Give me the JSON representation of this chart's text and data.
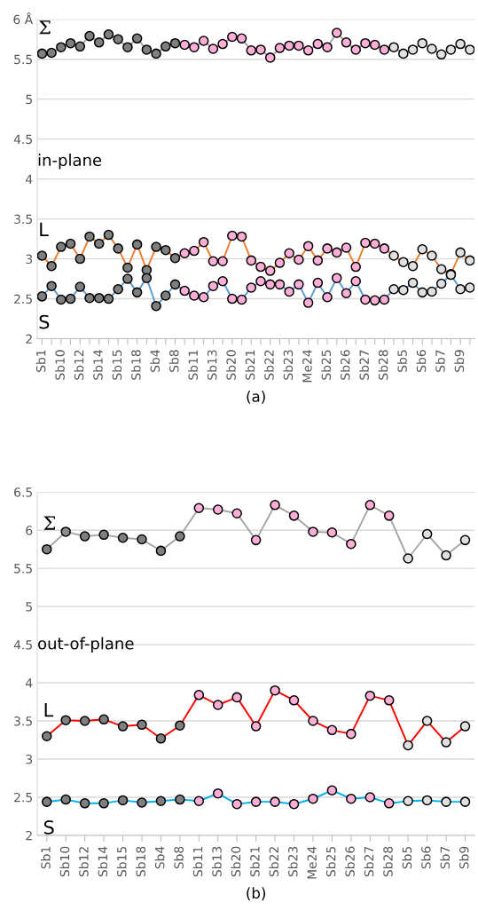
{
  "chart_data": [
    {
      "type": "line",
      "xlabel": "(a)",
      "annotations": [
        "in-plane"
      ],
      "categories": [
        "Sb1",
        null,
        "Sb10",
        null,
        "Sb12",
        null,
        "Sb14",
        null,
        "Sb15",
        null,
        "Sb18",
        null,
        "Sb4",
        null,
        "Sb8",
        null,
        "Sb11",
        null,
        "Sb13",
        null,
        "Sb20",
        null,
        "Sb21",
        null,
        "Sb22",
        null,
        "Sb23",
        null,
        "Me24",
        null,
        "Sb25",
        null,
        "Sb26",
        null,
        "Sb27",
        null,
        "Sb28",
        null,
        "Sb5",
        null,
        "Sb6",
        null,
        "Sb7",
        null,
        "Sb9",
        null
      ],
      "ylim": [
        2,
        6
      ],
      "yticks": [
        2,
        2.5,
        3,
        3.5,
        4,
        4.5,
        5,
        5.5,
        {
          "value": 6,
          "label": "6 Å"
        }
      ],
      "grid": "y",
      "marker": "circle",
      "line_style": "solid",
      "series": [
        {
          "name": "Σ",
          "color": "#a6a6a6",
          "values": [
            5.57,
            5.58,
            5.65,
            5.7,
            5.66,
            5.79,
            5.71,
            5.81,
            5.75,
            5.65,
            5.76,
            5.62,
            5.57,
            5.66,
            5.7,
            5.68,
            5.65,
            5.73,
            5.63,
            5.69,
            5.78,
            5.76,
            5.61,
            5.62,
            5.52,
            5.64,
            5.67,
            5.67,
            5.61,
            5.69,
            5.65,
            5.83,
            5.71,
            5.62,
            5.7,
            5.68,
            5.62,
            5.65,
            5.57,
            5.62,
            5.7,
            5.63,
            5.56,
            5.62,
            5.69,
            5.62
          ],
          "colors": [
            "#7f7f7f",
            "#7f7f7f",
            "#7f7f7f",
            "#7f7f7f",
            "#7f7f7f",
            "#7f7f7f",
            "#7f7f7f",
            "#7f7f7f",
            "#7f7f7f",
            "#7f7f7f",
            "#7f7f7f",
            "#7f7f7f",
            "#7f7f7f",
            "#7f7f7f",
            "#7f7f7f",
            "#ffafd7",
            "#ffafd7",
            "#ffafd7",
            "#ffafd7",
            "#ffafd7",
            "#ffafd7",
            "#ffafd7",
            "#ffafd7",
            "#ffafd7",
            "#ffafd7",
            "#ffafd7",
            "#ffafd7",
            "#ffafd7",
            "#ffafd7",
            "#ffafd7",
            "#ffafd7",
            "#ffafd7",
            "#ffafd7",
            "#ffafd7",
            "#ffafd7",
            "#ffafd7",
            "#ffafd7",
            "#e0e0e0",
            "#e0e0e0",
            "#e0e0e0",
            "#e0e0e0",
            "#e0e0e0",
            "#e0e0e0",
            "#e0e0e0",
            "#e0e0e0",
            "#e0e0e0"
          ]
        },
        {
          "name": "L",
          "color": "#ed7d31",
          "values": [
            3.04,
            2.91,
            3.15,
            3.19,
            3.0,
            3.28,
            3.19,
            3.3,
            3.13,
            2.89,
            3.18,
            2.86,
            3.15,
            3.11,
            3.01,
            3.07,
            3.1,
            3.21,
            2.97,
            2.97,
            3.29,
            3.28,
            2.98,
            2.9,
            2.85,
            2.95,
            3.07,
            2.99,
            3.16,
            2.98,
            3.13,
            3.08,
            3.14,
            2.9,
            3.2,
            3.19,
            3.13,
            3.04,
            2.96,
            2.91,
            3.12,
            3.04,
            2.87,
            2.81,
            3.08,
            2.98
          ],
          "colors": [
            "#7f7f7f",
            "#7f7f7f",
            "#7f7f7f",
            "#7f7f7f",
            "#7f7f7f",
            "#7f7f7f",
            "#7f7f7f",
            "#7f7f7f",
            "#7f7f7f",
            "#7f7f7f",
            "#7f7f7f",
            "#7f7f7f",
            "#7f7f7f",
            "#7f7f7f",
            "#7f7f7f",
            "#ffafd7",
            "#ffafd7",
            "#ffafd7",
            "#ffafd7",
            "#ffafd7",
            "#ffafd7",
            "#ffafd7",
            "#ffafd7",
            "#ffafd7",
            "#ffafd7",
            "#ffafd7",
            "#ffafd7",
            "#ffafd7",
            "#ffafd7",
            "#ffafd7",
            "#ffafd7",
            "#ffafd7",
            "#ffafd7",
            "#ffafd7",
            "#ffafd7",
            "#ffafd7",
            "#ffafd7",
            "#e0e0e0",
            "#e0e0e0",
            "#e0e0e0",
            "#e0e0e0",
            "#e0e0e0",
            "#e0e0e0",
            "#e0e0e0",
            "#e0e0e0",
            "#e0e0e0"
          ]
        },
        {
          "name": "S",
          "color": "#5b9bd5",
          "values": [
            2.53,
            2.66,
            2.49,
            2.5,
            2.65,
            2.51,
            2.51,
            2.5,
            2.62,
            2.75,
            2.58,
            2.76,
            2.41,
            2.54,
            2.68,
            2.6,
            2.54,
            2.52,
            2.66,
            2.72,
            2.5,
            2.49,
            2.64,
            2.72,
            2.68,
            2.68,
            2.59,
            2.68,
            2.45,
            2.7,
            2.52,
            2.76,
            2.57,
            2.72,
            2.49,
            2.48,
            2.49,
            2.62,
            2.61,
            2.7,
            2.58,
            2.59,
            2.69,
            2.8,
            2.62,
            2.64
          ],
          "colors": [
            "#7f7f7f",
            "#7f7f7f",
            "#7f7f7f",
            "#7f7f7f",
            "#7f7f7f",
            "#7f7f7f",
            "#7f7f7f",
            "#7f7f7f",
            "#7f7f7f",
            "#7f7f7f",
            "#7f7f7f",
            "#7f7f7f",
            "#7f7f7f",
            "#7f7f7f",
            "#7f7f7f",
            "#ffafd7",
            "#ffafd7",
            "#ffafd7",
            "#ffafd7",
            "#ffafd7",
            "#ffafd7",
            "#ffafd7",
            "#ffafd7",
            "#ffafd7",
            "#ffafd7",
            "#ffafd7",
            "#ffafd7",
            "#ffafd7",
            "#ffafd7",
            "#ffafd7",
            "#ffafd7",
            "#ffafd7",
            "#ffafd7",
            "#ffafd7",
            "#ffafd7",
            "#ffafd7",
            "#ffafd7",
            "#e0e0e0",
            "#e0e0e0",
            "#e0e0e0",
            "#e0e0e0",
            "#e0e0e0",
            "#e0e0e0",
            "#e0e0e0",
            "#e0e0e0",
            "#e0e0e0"
          ]
        }
      ]
    },
    {
      "type": "line",
      "xlabel": "(b)",
      "annotations": [
        "out-of-plane"
      ],
      "categories": [
        "Sb1",
        "Sb10",
        "Sb12",
        "Sb14",
        "Sb15",
        "Sb18",
        "Sb4",
        "Sb8",
        "Sb11",
        "Sb13",
        "Sb20",
        "Sb21",
        "Sb22",
        "Sb23",
        "Me24",
        "Sb25",
        "Sb26",
        "Sb27",
        "Sb28",
        "Sb5",
        "Sb6",
        "Sb7",
        "Sb9"
      ],
      "ylim": [
        2,
        6.5
      ],
      "yticks": [
        2,
        2.5,
        3,
        3.5,
        4,
        4.5,
        5,
        5.5,
        6,
        6.5
      ],
      "grid": "y",
      "marker": "circle",
      "line_style": "solid",
      "series": [
        {
          "name": "Σ",
          "color": "#a6a6a6",
          "values": [
            5.75,
            5.98,
            5.92,
            5.94,
            5.9,
            5.88,
            5.73,
            5.92,
            6.29,
            6.27,
            6.22,
            5.87,
            6.33,
            6.19,
            5.98,
            5.97,
            5.82,
            6.33,
            6.19,
            5.63,
            5.95,
            5.67,
            5.87
          ],
          "colors": [
            "#7f7f7f",
            "#8c8c8c",
            "#7f7f7f",
            "#7f7f7f",
            "#7f7f7f",
            "#7f7f7f",
            "#7f7f7f",
            "#7f7f7f",
            "#ffafd7",
            "#ffafd7",
            "#ffafd7",
            "#ffafd7",
            "#ffafd7",
            "#ffafd7",
            "#ffafd7",
            "#ffafd7",
            "#ffafd7",
            "#ffafd7",
            "#ffafd7",
            "#e0e0e0",
            "#e0e0e0",
            "#e0e0e0",
            "#e0e0e0"
          ]
        },
        {
          "name": "L",
          "color": "#ff0000",
          "values": [
            3.3,
            3.51,
            3.5,
            3.52,
            3.43,
            3.45,
            3.27,
            3.44,
            3.84,
            3.71,
            3.81,
            3.43,
            3.9,
            3.77,
            3.5,
            3.38,
            3.33,
            3.83,
            3.77,
            3.18,
            3.5,
            3.22,
            3.43
          ],
          "colors": [
            "#7f7f7f",
            "#7f7f7f",
            "#7f7f7f",
            "#7f7f7f",
            "#7f7f7f",
            "#7f7f7f",
            "#7f7f7f",
            "#7f7f7f",
            "#ffafd7",
            "#ffafd7",
            "#ffafd7",
            "#ffafd7",
            "#ffafd7",
            "#ffafd7",
            "#ffafd7",
            "#ffafd7",
            "#ffafd7",
            "#ffafd7",
            "#ffafd7",
            "#e0e0e0",
            "#e0e0e0",
            "#e0e0e0",
            "#e0e0e0"
          ]
        },
        {
          "name": "S",
          "color": "#00b0f0",
          "values": [
            2.44,
            2.47,
            2.42,
            2.42,
            2.46,
            2.43,
            2.45,
            2.47,
            2.45,
            2.55,
            2.41,
            2.44,
            2.44,
            2.41,
            2.48,
            2.59,
            2.48,
            2.5,
            2.42,
            2.45,
            2.46,
            2.44,
            2.44
          ],
          "colors": [
            "#7f7f7f",
            "#7f7f7f",
            "#7f7f7f",
            "#7f7f7f",
            "#7f7f7f",
            "#7f7f7f",
            "#7f7f7f",
            "#7f7f7f",
            "#ffafd7",
            "#ffafd7",
            "#ffafd7",
            "#ffafd7",
            "#ffafd7",
            "#ffafd7",
            "#ffafd7",
            "#ffafd7",
            "#ffafd7",
            "#ffafd7",
            "#ffafd7",
            "#e0e0e0",
            "#e0e0e0",
            "#e0e0e0",
            "#e0e0e0"
          ]
        }
      ]
    }
  ]
}
